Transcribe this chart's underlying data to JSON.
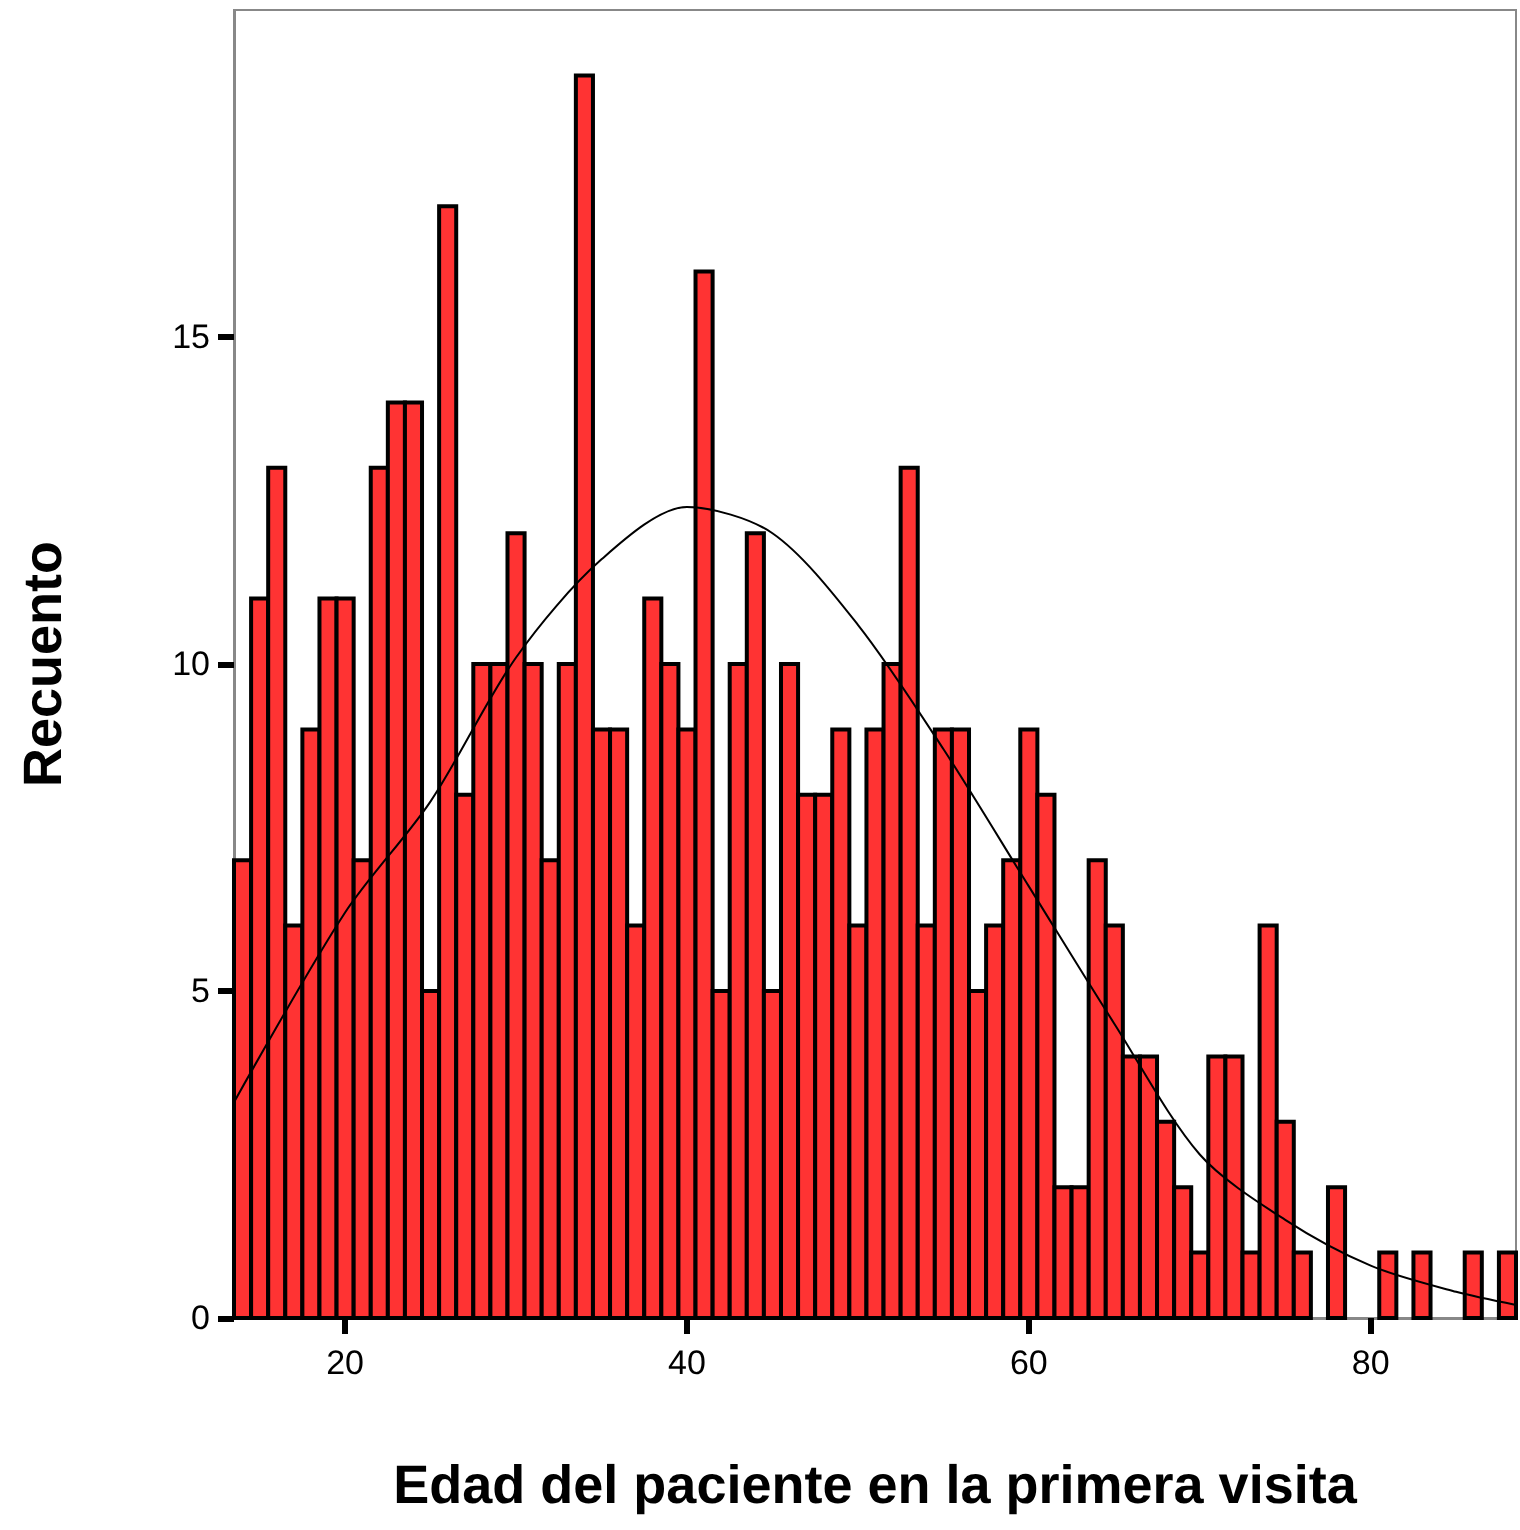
{
  "chart_data": {
    "type": "histogram",
    "xlabel": "Edad del paciente en la primera visita",
    "ylabel": "Recuento",
    "bins": [
      13.5,
      14.5,
      15.5,
      16.5,
      17.5,
      18.5,
      19.5,
      20.5,
      21.5,
      22.5,
      23.5,
      24.5,
      25.5,
      26.5,
      27.5,
      28.5,
      29.5,
      30.5,
      31.5,
      32.5,
      33.5,
      34.5,
      35.5,
      36.5,
      37.5,
      38.5,
      39.5,
      40.5,
      41.5,
      42.5,
      43.5,
      44.5,
      45.5,
      46.5,
      47.5,
      48.5,
      49.5,
      50.5,
      51.5,
      52.5,
      53.5,
      54.5,
      55.5,
      56.5,
      57.5,
      58.5,
      59.5,
      60.5,
      61.5,
      62.5,
      63.5,
      64.5,
      65.5,
      66.5,
      67.5,
      68.5,
      69.5,
      70.5,
      71.5,
      72.5,
      73.5,
      74.5,
      75.5,
      76.5,
      77.5,
      78.5,
      79.5,
      80.5,
      81.5,
      82.5,
      83.5,
      84.5,
      85.5,
      86.5,
      87.5,
      88.5
    ],
    "values": [
      7,
      11,
      13,
      6,
      9,
      11,
      11,
      7,
      13,
      14,
      14,
      5,
      17,
      8,
      10,
      10,
      12,
      10,
      7,
      10,
      19,
      9,
      9,
      6,
      11,
      10,
      9,
      16,
      5,
      10,
      12,
      5,
      10,
      8,
      8,
      9,
      6,
      9,
      10,
      13,
      6,
      9,
      9,
      5,
      6,
      7,
      9,
      8,
      2,
      2,
      7,
      6,
      4,
      4,
      3,
      2,
      1,
      4,
      4,
      1,
      6,
      3,
      1,
      0,
      2,
      0,
      0,
      1,
      0,
      1,
      0,
      0,
      1,
      0,
      1
    ],
    "color": "#ff3333",
    "series": [
      {
        "type": "line",
        "color": "#000000",
        "x": [
          13.5,
          20,
          25,
          30,
          35,
          40,
          45,
          50,
          55,
          60,
          65,
          70,
          75,
          80,
          85,
          88.5
        ],
        "values": [
          3.3,
          6.2,
          7.9,
          10.1,
          11.6,
          12.4,
          12.0,
          10.6,
          8.7,
          6.6,
          4.5,
          2.5,
          1.5,
          0.8,
          0.4,
          0.2
        ]
      }
    ],
    "xlim": [
      13.5,
      88.5
    ],
    "xticks": [
      20,
      40,
      60,
      80
    ],
    "ylim": [
      0,
      20
    ],
    "yticks": [
      0,
      5,
      10,
      15
    ],
    "grid": false,
    "marker": "none",
    "line_style": "solid"
  }
}
